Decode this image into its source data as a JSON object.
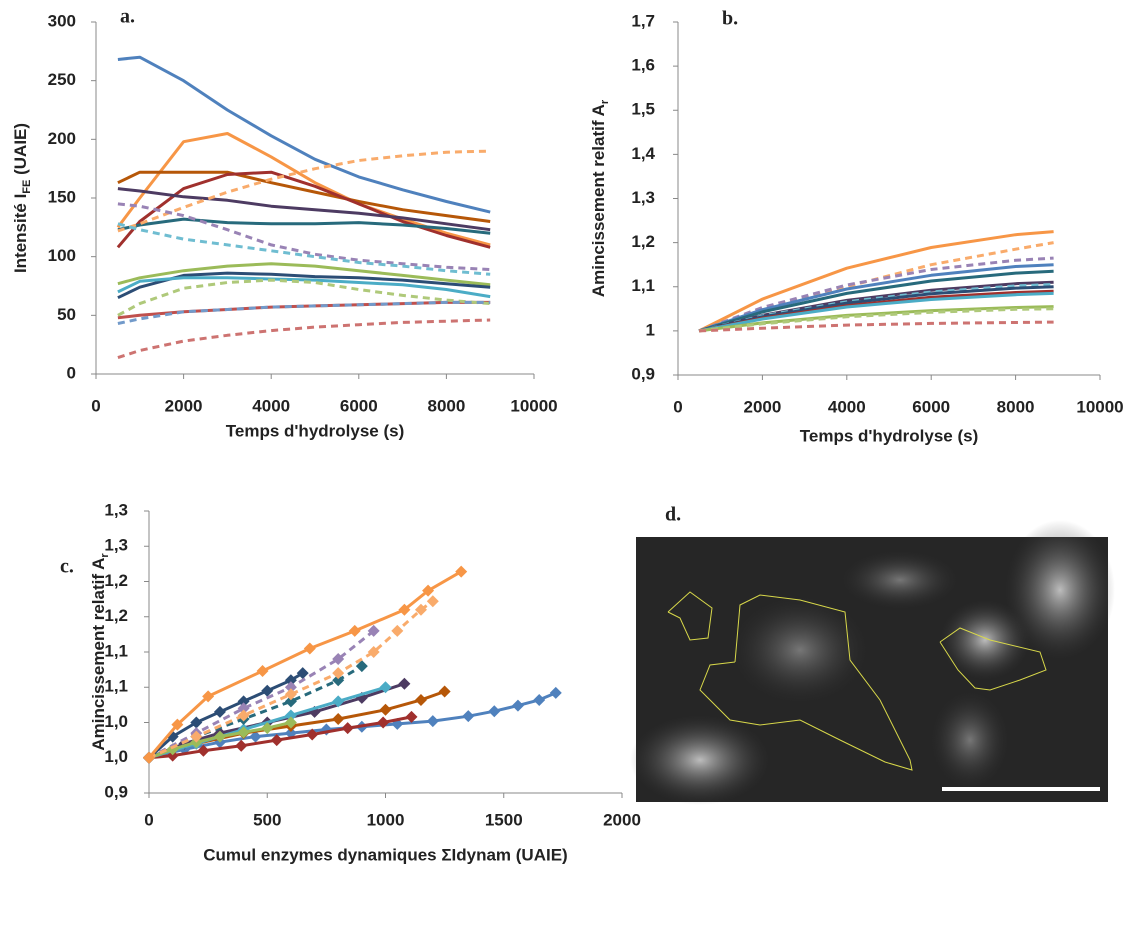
{
  "chart_data": [
    {
      "type": "line",
      "panel_label": "a.",
      "ylabel": "Intensité I",
      "ylabel_sub": "FE",
      "ylabel_tail": " (UAIE)",
      "xlabel": "Temps d'hydrolyse (s)",
      "xlim": [
        0,
        10000
      ],
      "xticks": [
        0,
        2000,
        4000,
        6000,
        8000,
        10000
      ],
      "ylim": [
        0,
        300
      ],
      "yticks": [
        0,
        50,
        100,
        150,
        200,
        250,
        300
      ],
      "x": [
        500,
        1000,
        2000,
        3000,
        4000,
        5000,
        6000,
        7000,
        8000,
        9000
      ],
      "series": [
        {
          "color": "#4F81BD",
          "dash": false,
          "values": [
            268,
            270,
            250,
            225,
            203,
            183,
            168,
            157,
            147,
            138
          ]
        },
        {
          "color": "#F79646",
          "dash": false,
          "values": [
            125,
            150,
            198,
            205,
            185,
            163,
            145,
            132,
            120,
            110
          ]
        },
        {
          "color": "#B65708",
          "dash": false,
          "values": [
            163,
            172,
            172,
            172,
            163,
            155,
            147,
            140,
            135,
            130
          ]
        },
        {
          "color": "#A0302D",
          "dash": false,
          "values": [
            108,
            130,
            158,
            170,
            172,
            160,
            145,
            130,
            118,
            108
          ]
        },
        {
          "color": "#4D3B62",
          "dash": false,
          "values": [
            158,
            156,
            151,
            148,
            143,
            140,
            137,
            133,
            128,
            123
          ]
        },
        {
          "color": "#276A7C",
          "dash": false,
          "values": [
            123,
            127,
            132,
            129,
            128,
            128,
            129,
            127,
            124,
            120
          ]
        },
        {
          "color": "#9BBB59",
          "dash": false,
          "values": [
            77,
            82,
            88,
            92,
            94,
            92,
            88,
            84,
            80,
            76
          ]
        },
        {
          "color": "#2C4D75",
          "dash": false,
          "values": [
            65,
            74,
            84,
            86,
            85,
            83,
            82,
            80,
            77,
            74
          ]
        },
        {
          "color": "#4BACC6",
          "dash": false,
          "values": [
            70,
            79,
            82,
            82,
            81,
            80,
            78,
            76,
            72,
            66
          ]
        },
        {
          "color": "#C0504D",
          "dash": false,
          "values": [
            48,
            50,
            53,
            55,
            57,
            58,
            59,
            60,
            61,
            61
          ]
        },
        {
          "color": "#F9AB6B",
          "dash": true,
          "values": [
            122,
            128,
            142,
            155,
            166,
            175,
            182,
            186,
            189,
            190
          ]
        },
        {
          "color": "#9983B5",
          "dash": true,
          "values": [
            145,
            143,
            135,
            123,
            110,
            102,
            97,
            94,
            91,
            89
          ]
        },
        {
          "color": "#6FBDD1",
          "dash": true,
          "values": [
            128,
            123,
            115,
            110,
            105,
            100,
            95,
            92,
            88,
            85
          ]
        },
        {
          "color": "#AFC97A",
          "dash": true,
          "values": [
            50,
            60,
            73,
            78,
            80,
            78,
            72,
            67,
            63,
            60
          ]
        },
        {
          "color": "#729ACA",
          "dash": true,
          "values": [
            43,
            47,
            53,
            55,
            57,
            58,
            59,
            60,
            61,
            61
          ]
        },
        {
          "color": "#CD7371",
          "dash": true,
          "values": [
            14,
            20,
            28,
            33,
            37,
            40,
            42,
            44,
            45,
            46
          ]
        }
      ]
    },
    {
      "type": "line",
      "panel_label": "b.",
      "ylabel": "Amincissement relatif A",
      "ylabel_sub": "r",
      "xlabel": "Temps d'hydrolyse (s)",
      "xlim": [
        0,
        10000
      ],
      "xticks": [
        0,
        2000,
        4000,
        6000,
        8000,
        10000
      ],
      "ylim": [
        0.9,
        1.7
      ],
      "yticks": [
        {
          "value": 0.9,
          "label": "0,9"
        },
        1,
        {
          "value": 1.1,
          "label": "1,1"
        },
        {
          "value": 1.2,
          "label": "1,2"
        },
        {
          "value": 1.3,
          "label": "1,3"
        },
        {
          "value": 1.4,
          "label": "1,4"
        },
        {
          "value": 1.5,
          "label": "1,5"
        },
        {
          "value": 1.6,
          "label": "1,6"
        },
        {
          "value": 1.7,
          "label": "1,7"
        }
      ],
      "x": [
        500,
        2000,
        4000,
        6000,
        8000,
        8900
      ],
      "series": [
        {
          "color": "#F79646",
          "dash": false,
          "values": [
            1,
            1.072,
            1.142,
            1.189,
            1.218,
            1.225
          ]
        },
        {
          "color": "#F9AB6B",
          "dash": true,
          "values": [
            1,
            1.05,
            1.1,
            1.15,
            1.185,
            1.2
          ]
        },
        {
          "color": "#9983B5",
          "dash": true,
          "values": [
            1,
            1.053,
            1.104,
            1.139,
            1.16,
            1.165
          ]
        },
        {
          "color": "#4F81BD",
          "dash": false,
          "values": [
            1,
            1.048,
            1.095,
            1.126,
            1.146,
            1.15
          ]
        },
        {
          "color": "#276A7C",
          "dash": false,
          "values": [
            1,
            1.043,
            1.085,
            1.113,
            1.131,
            1.135
          ]
        },
        {
          "color": "#4D3B62",
          "dash": false,
          "values": [
            1,
            1.035,
            1.069,
            1.092,
            1.107,
            1.11
          ]
        },
        {
          "color": "#6FBDD1",
          "dash": true,
          "values": [
            1,
            1.034,
            1.066,
            1.088,
            1.102,
            1.105
          ]
        },
        {
          "color": "#2C4D75",
          "dash": false,
          "values": [
            1,
            1.032,
            1.063,
            1.084,
            1.097,
            1.1
          ]
        },
        {
          "color": "#A0302D",
          "dash": false,
          "values": [
            1,
            1.029,
            1.057,
            1.076,
            1.087,
            1.09
          ]
        },
        {
          "color": "#4BACC6",
          "dash": false,
          "values": [
            1,
            1.027,
            1.054,
            1.071,
            1.082,
            1.085
          ]
        },
        {
          "color": "#9BBB59",
          "dash": false,
          "values": [
            1,
            1.018,
            1.035,
            1.046,
            1.053,
            1.055
          ]
        },
        {
          "color": "#AFC97A",
          "dash": true,
          "values": [
            1,
            1.016,
            1.032,
            1.042,
            1.049,
            1.05
          ]
        },
        {
          "color": "#CD7371",
          "dash": true,
          "values": [
            1,
            1.006,
            1.013,
            1.017,
            1.019,
            1.02
          ]
        }
      ]
    },
    {
      "type": "line",
      "panel_label": "c.",
      "marker": "diamond",
      "ylabel": "Amincissement relatif A",
      "ylabel_sub": "r",
      "xlabel": "Cumul enzymes dynamiques ΣIdynam (UAIE)",
      "xlim": [
        0,
        2000
      ],
      "xticks": [
        0,
        500,
        1000,
        1500,
        2000
      ],
      "ylim": [
        0.95,
        1.35
      ],
      "yticks": [
        {
          "value": 0.95,
          "label": "0,9"
        },
        {
          "value": 1,
          "label": "1,0"
        },
        {
          "value": 1.05,
          "label": "1,0"
        },
        {
          "value": 1.1,
          "label": "1,1"
        },
        {
          "value": 1.15,
          "label": "1,1"
        },
        {
          "value": 1.2,
          "label": "1,2"
        },
        {
          "value": 1.25,
          "label": "1,2"
        },
        {
          "value": 1.3,
          "label": "1,3"
        },
        {
          "value": 1.35,
          "label": "1,3"
        }
      ],
      "series": [
        {
          "color": "#4F81BD",
          "dash": false,
          "x": [
            0,
            150,
            300,
            450,
            600,
            750,
            900,
            1050,
            1200,
            1350,
            1460,
            1560,
            1650,
            1720
          ],
          "values": [
            1,
            1.012,
            1.022,
            1.03,
            1.035,
            1.04,
            1.044,
            1.048,
            1.052,
            1.059,
            1.066,
            1.074,
            1.082,
            1.092
          ]
        },
        {
          "color": "#A0302D",
          "dash": false,
          "x": [
            0,
            100,
            230,
            390,
            540,
            690,
            840,
            990,
            1110
          ],
          "values": [
            1,
            1.003,
            1.01,
            1.017,
            1.025,
            1.033,
            1.042,
            1.05,
            1.058
          ]
        },
        {
          "color": "#B65708",
          "dash": false,
          "x": [
            0,
            200,
            400,
            600,
            800,
            1000,
            1150,
            1250
          ],
          "values": [
            1,
            1.02,
            1.035,
            1.045,
            1.055,
            1.068,
            1.082,
            1.094
          ]
        },
        {
          "color": "#4D3B62",
          "dash": false,
          "x": [
            0,
            150,
            300,
            500,
            700,
            900,
            1080
          ],
          "values": [
            1,
            1.02,
            1.035,
            1.05,
            1.065,
            1.085,
            1.105
          ]
        },
        {
          "color": "#4BACC6",
          "dash": false,
          "x": [
            0,
            200,
            400,
            600,
            800,
            1000
          ],
          "values": [
            1,
            1.02,
            1.04,
            1.06,
            1.08,
            1.1
          ]
        },
        {
          "color": "#276A7C",
          "dash": true,
          "x": [
            0,
            200,
            400,
            600,
            800,
            900
          ],
          "values": [
            1,
            1.03,
            1.055,
            1.08,
            1.11,
            1.13
          ]
        },
        {
          "color": "#9BBB59",
          "dash": false,
          "x": [
            0,
            100,
            200,
            300,
            400,
            500,
            600
          ],
          "values": [
            1,
            1.012,
            1.022,
            1.03,
            1.036,
            1.042,
            1.05
          ]
        },
        {
          "color": "#2C4D75",
          "dash": false,
          "x": [
            0,
            100,
            200,
            300,
            400,
            500,
            600,
            650
          ],
          "values": [
            1,
            1.03,
            1.05,
            1.065,
            1.08,
            1.095,
            1.11,
            1.12
          ]
        },
        {
          "color": "#9983B5",
          "dash": true,
          "x": [
            0,
            200,
            400,
            600,
            800,
            950
          ],
          "values": [
            1,
            1.035,
            1.07,
            1.1,
            1.14,
            1.18
          ]
        },
        {
          "color": "#F9AB6B",
          "dash": true,
          "x": [
            0,
            200,
            400,
            600,
            800,
            950,
            1050,
            1150,
            1200
          ],
          "values": [
            1,
            1.03,
            1.06,
            1.09,
            1.12,
            1.15,
            1.18,
            1.21,
            1.222
          ]
        },
        {
          "color": "#F79646",
          "dash": false,
          "x": [
            0,
            120,
            250,
            480,
            680,
            870,
            1080,
            1180,
            1320
          ],
          "values": [
            1,
            1.047,
            1.087,
            1.123,
            1.155,
            1.18,
            1.21,
            1.237,
            1.264
          ]
        }
      ]
    }
  ],
  "image_panel": {
    "label": "d."
  }
}
